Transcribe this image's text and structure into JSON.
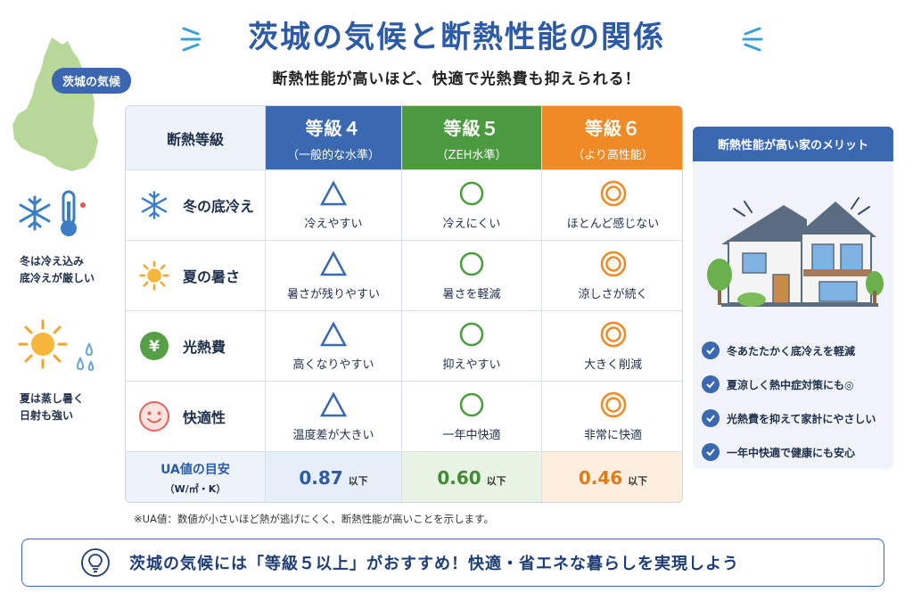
{
  "title": "茨城の気候と断熱性能の関係",
  "subtitle": "断熱性能が高いほど、快適で光熱費も抑えられる！",
  "map_badge": "茨城の気候",
  "climate_notes": {
    "winter": [
      "冬は冷え込み",
      "底冷えが厳しい"
    ],
    "summer": [
      "夏は蒸し暑く",
      "日射も強い"
    ]
  },
  "table": {
    "corner_label": "断熱等級",
    "grades": [
      {
        "name": "等級４",
        "sub": "（一般的な水準）",
        "color": "#3a68b1"
      },
      {
        "name": "等級５",
        "sub": "（ZEH水準）",
        "color": "#4c9a3f"
      },
      {
        "name": "等級６",
        "sub": "（より高性能）",
        "color": "#ef8a26"
      }
    ],
    "rows": [
      {
        "label": "冬の底冷え",
        "icon": "snowflake-icon",
        "cells": [
          "冷えやすい",
          "冷えにくい",
          "ほとんど感じない"
        ]
      },
      {
        "label": "夏の暑さ",
        "icon": "sun-icon",
        "cells": [
          "暑さが残りやすい",
          "暑さを軽減",
          "涼しさが続く"
        ]
      },
      {
        "label": "光熱費",
        "icon": "yen-icon",
        "cells": [
          "高くなりやすい",
          "抑えやすい",
          "大きく削減"
        ]
      },
      {
        "label": "快適性",
        "icon": "smile-icon",
        "cells": [
          "温度差が大きい",
          "一年中快適",
          "非常に快適"
        ]
      }
    ],
    "ua": {
      "label": "UA値の目安",
      "unit": "（W/㎡・K）",
      "values": [
        "0.87",
        "0.60",
        "0.46"
      ],
      "suffix": "以下"
    }
  },
  "footnote": "※UA値：数値が小さいほど熱が逃げにくく、断熱性能が高いことを示します。",
  "banner": "茨城の気候には「等級５以上」がおすすめ！快適・省エネな暮らしを実現しよう",
  "merit": {
    "title": "断熱性能が高い家のメリット",
    "items": [
      "冬あたたかく底冷えを軽減",
      "夏涼しく熱中症対策にも◎",
      "光熱費を抑えて家計にやさしい",
      "一年中快適で健康にも安心"
    ]
  },
  "colors": {
    "primary": "#3a68b1",
    "grade4": "#3a68b1",
    "grade5": "#4c9a3f",
    "grade6": "#ef8a26",
    "map": "#b8d89a"
  }
}
